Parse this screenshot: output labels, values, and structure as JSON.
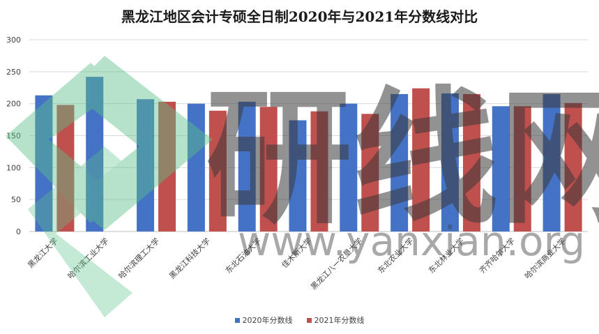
{
  "chart_data": {
    "type": "bar",
    "title": "黑龙江地区会计专硕全日制2020年与2021年分数线对比",
    "categories": [
      "黑龙江大学",
      "哈尔滨工业大学",
      "哈尔滨理工大学",
      "黑龙江科技大学",
      "东北石油大学",
      "佳木斯大学",
      "黑龙江八一农垦大学",
      "东北农业大学",
      "东北林业大学",
      "齐齐哈尔大学",
      "哈尔滨商业大学"
    ],
    "series": [
      {
        "name": "2020年分数线",
        "color": "#4472c4",
        "values": [
          213,
          242,
          207,
          200,
          203,
          174,
          200,
          215,
          216,
          196,
          215
        ]
      },
      {
        "name": "2021年分数线",
        "color": "#c0504d",
        "values": [
          198,
          null,
          203,
          189,
          195,
          188,
          184,
          224,
          215,
          196,
          201
        ]
      }
    ],
    "ylim": [
      0,
      300
    ],
    "yticks": [
      "0",
      "50",
      "100",
      "150",
      "200",
      "250",
      "300"
    ],
    "grid": true,
    "legend_position": "bottom"
  },
  "watermark": {
    "text": "研线网",
    "url": "www.yanxian.org",
    "logo": "green-arrow-logo"
  }
}
